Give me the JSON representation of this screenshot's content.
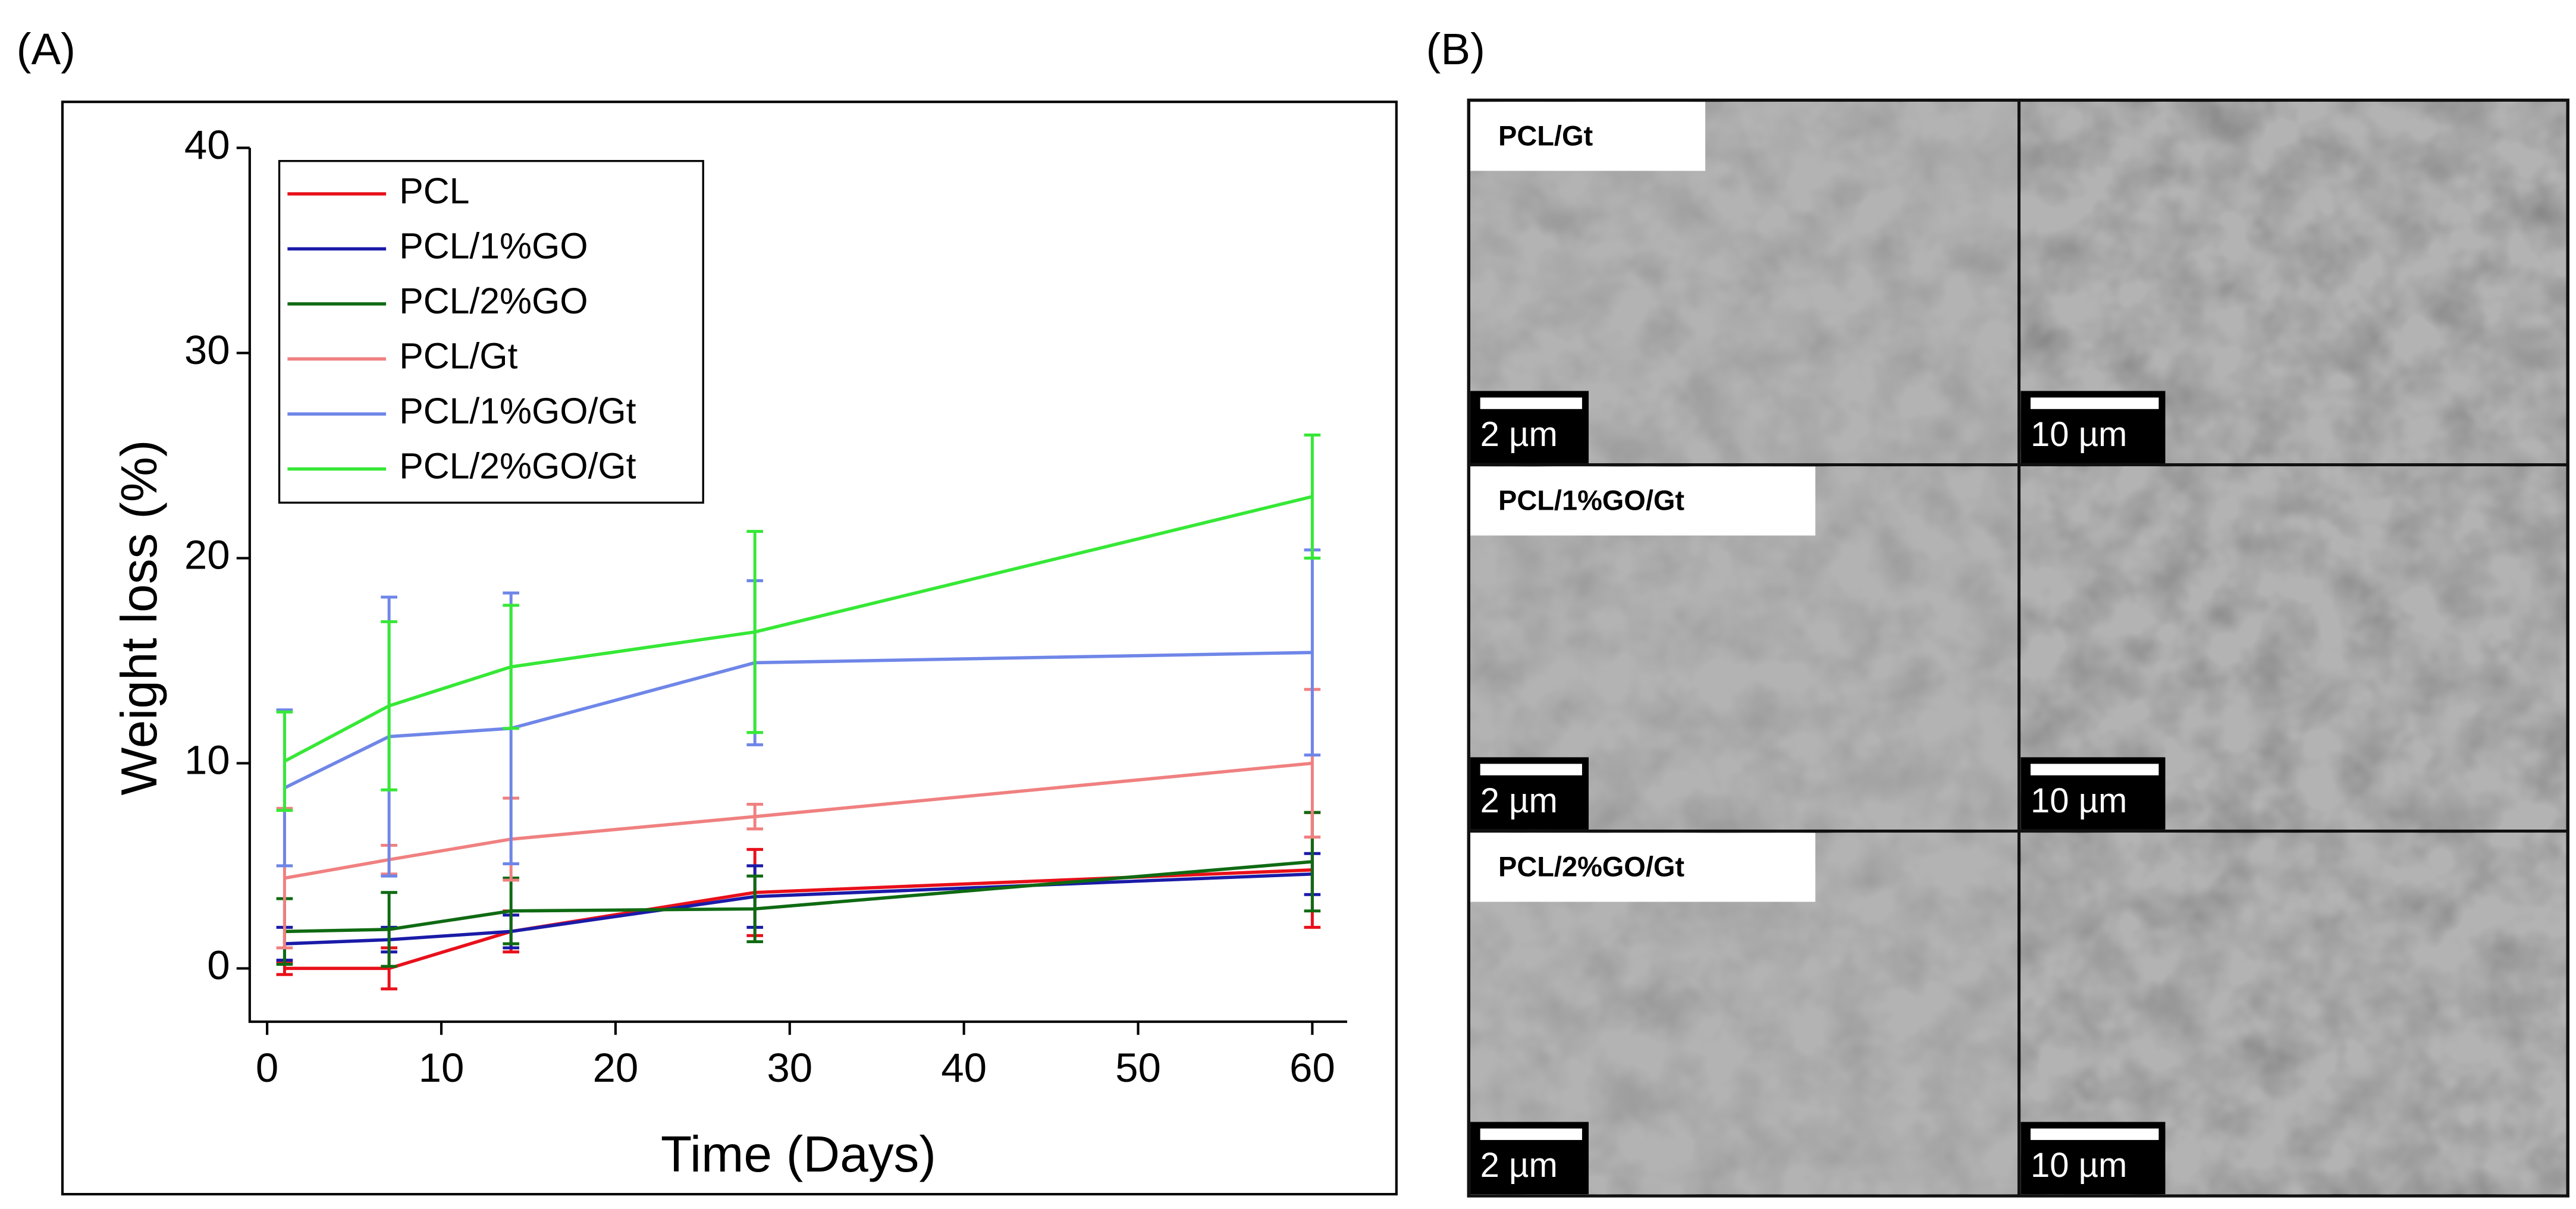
{
  "panel_labels": [
    "(A)",
    "(B)"
  ],
  "chart_data": {
    "type": "line",
    "x_label": "Time (Days)",
    "y_label": "Weight loss (%)",
    "x": [
      1,
      7,
      14,
      28,
      60
    ],
    "series": [
      {
        "name": "PCL",
        "color": "#e8101a",
        "values": [
          0,
          0,
          1.8,
          3.7,
          4.8
        ],
        "errors": [
          0.3,
          1.0,
          1.0,
          2.1,
          2.8
        ]
      },
      {
        "name": "PCL/1%GO",
        "color": "#1a1aa8",
        "values": [
          1.2,
          1.4,
          1.8,
          3.5,
          4.6
        ],
        "errors": [
          0.8,
          0.6,
          0.8,
          1.5,
          1.0
        ]
      },
      {
        "name": "PCL/2%GO",
        "color": "#0f6a12",
        "values": [
          1.8,
          1.9,
          2.8,
          2.9,
          5.2
        ],
        "errors": [
          1.6,
          1.8,
          1.6,
          1.6,
          2.4
        ]
      },
      {
        "name": "PCL/Gt",
        "color": "#f08080",
        "values": [
          4.4,
          5.3,
          6.3,
          7.4,
          10.0
        ],
        "errors": [
          3.4,
          0.7,
          2.0,
          0.6,
          3.6
        ]
      },
      {
        "name": "PCL/1%GO/Gt",
        "color": "#6f86e8",
        "values": [
          8.8,
          11.3,
          11.7,
          14.9,
          15.4
        ],
        "errors": [
          3.8,
          6.8,
          6.6,
          4.0,
          5.0
        ]
      },
      {
        "name": "PCL/2%GO/Gt",
        "color": "#36e836",
        "values": [
          10.1,
          12.8,
          14.7,
          16.4,
          23.0
        ],
        "errors": [
          2.4,
          4.1,
          3.0,
          4.9,
          3.0
        ]
      }
    ],
    "xlim": [
      -1,
      62
    ],
    "ylim": [
      -2.6,
      40
    ],
    "xticks": [
      0,
      10,
      20,
      30,
      40,
      50,
      60
    ],
    "yticks": [
      0,
      10,
      20,
      30,
      40
    ],
    "legend": "upper left"
  },
  "micrographs": {
    "rows": [
      {
        "label": "PCL/Gt",
        "scale_bars": [
          "2 µm",
          "10 µm"
        ]
      },
      {
        "label": "PCL/1%GO/Gt",
        "scale_bars": [
          "2 µm",
          "10 µm"
        ]
      },
      {
        "label": "PCL/2%GO/Gt",
        "scale_bars": [
          "2 µm",
          "10 µm"
        ]
      }
    ]
  }
}
